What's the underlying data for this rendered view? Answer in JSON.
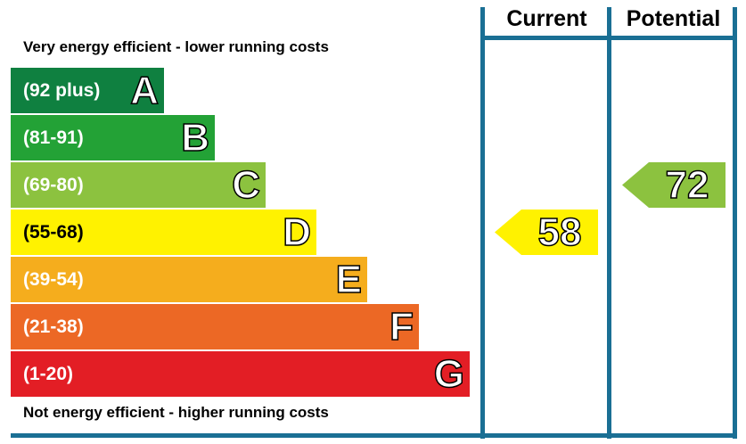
{
  "chart_data": {
    "type": "bar",
    "top_caption": "Very energy efficient - lower running costs",
    "bottom_caption": "Not energy efficient - higher running costs",
    "bands": [
      {
        "range": "(92 plus)",
        "letter": "A",
        "color": "#0f8040"
      },
      {
        "range": "(81-91)",
        "letter": "B",
        "color": "#23a236"
      },
      {
        "range": "(69-80)",
        "letter": "C",
        "color": "#8cc23f"
      },
      {
        "range": "(55-68)",
        "letter": "D",
        "color": "#fff200"
      },
      {
        "range": "(39-54)",
        "letter": "E",
        "color": "#f5ad1d"
      },
      {
        "range": "(21-38)",
        "letter": "F",
        "color": "#ec6825"
      },
      {
        "range": "(1-20)",
        "letter": "G",
        "color": "#e31e25"
      }
    ],
    "columns": [
      "Current",
      "Potential"
    ],
    "current": {
      "value": 58,
      "band": "D",
      "color": "#fff200"
    },
    "potential": {
      "value": 72,
      "band": "C",
      "color": "#8cc23f"
    }
  },
  "frame_color": "#1a6f94"
}
